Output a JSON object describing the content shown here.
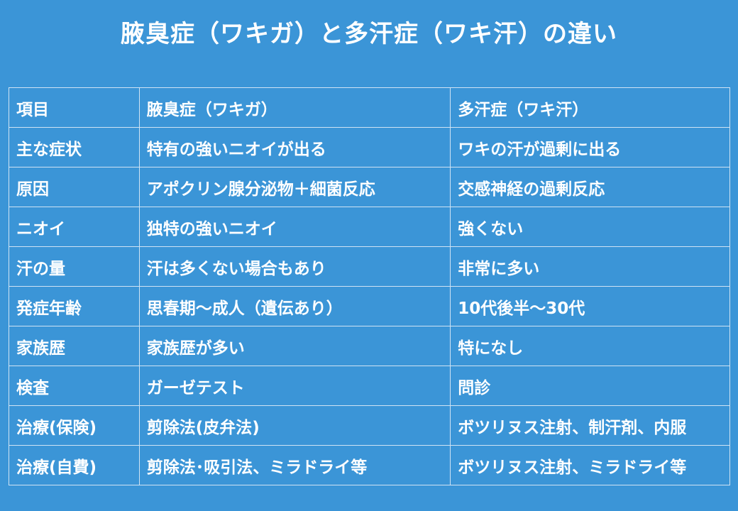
{
  "title": "腋臭症（ワキガ）と多汗症（ワキ汗）の違い",
  "colors": {
    "background": "#3b95d7",
    "border": "#cfe3f4",
    "text": "#ffffff"
  },
  "table": {
    "header": [
      "項目",
      "腋臭症（ワキガ）",
      "多汗症（ワキ汗）"
    ],
    "rows": [
      [
        "主な症状",
        "特有の強いニオイが出る",
        "ワキの汗が過剰に出る"
      ],
      [
        "原因",
        "アポクリン腺分泌物＋細菌反応",
        "交感神経の過剰反応"
      ],
      [
        "ニオイ",
        "独特の強いニオイ",
        "強くない"
      ],
      [
        "汗の量",
        "汗は多くない場合もあり",
        "非常に多い"
      ],
      [
        "発症年齢",
        "思春期～成人（遺伝あり）",
        "10代後半～30代"
      ],
      [
        "家族歴",
        "家族歴が多い",
        "特になし"
      ],
      [
        "検査",
        "ガーゼテスト",
        "問診"
      ],
      [
        "治療(保険)",
        "剪除法(皮弁法)",
        "ボツリヌス注射、制汗剤、内服"
      ],
      [
        "治療(自費)",
        "剪除法･吸引法、ミラドライ等",
        "ボツリヌス注射、ミラドライ等"
      ]
    ]
  }
}
